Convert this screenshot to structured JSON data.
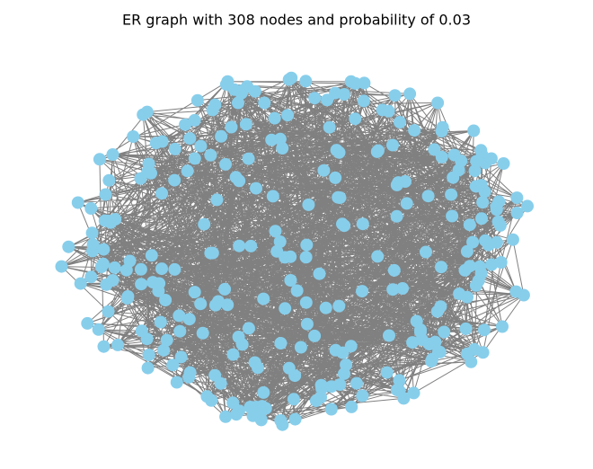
{
  "title": "ER graph with 308 nodes and probability of 0.03"
}
